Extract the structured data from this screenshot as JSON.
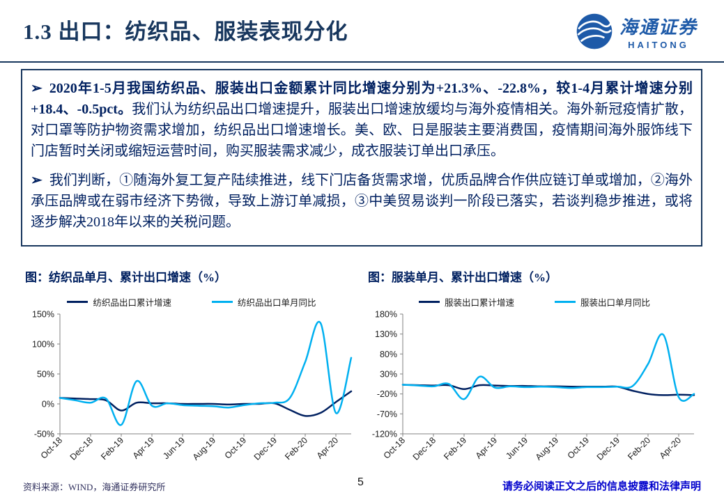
{
  "header": {
    "title": "1.3 出口：纺织品、服装表现分化",
    "logo_cn": "海通证券",
    "logo_en": "HAITONG",
    "accent_color": "#17365d"
  },
  "textbox": {
    "paragraphs": [
      {
        "bullet": "➢",
        "bold": "2020年1-5月我国纺织品、服装出口金额累计同比增速分别为+21.3%、-22.8%，较1-4月累计增速分别+18.4、-0.5pct。",
        "regular": "我们认为纺织品出口增速提升，服装出口增速放缓均与海外疫情相关。海外新冠疫情扩散，对口罩等防护物资需求增加，纺织品出口增速增长。美、欧、日是服装主要消费国，疫情期间海外服饰线下门店暂时关闭或缩短运营时间，购买服装需求减少，成衣服装订单出口承压。"
      },
      {
        "bullet": "➢",
        "bold": "",
        "regular": "我们判断，①随海外复工复产陆续推进，线下门店备货需求增，优质品牌合作供应链订单或增加，②海外承压品牌或在弱市经济下势微，导致上游订单减损，③中美贸易谈判一阶段已落实，若谈判稳步推进，或将逐步解决2018年以来的关税问题。"
      }
    ]
  },
  "chart_data": [
    {
      "type": "line",
      "title": "图：纺织品单月、累计出口增速（%）",
      "x": [
        "Oct-18",
        "Nov-18",
        "Dec-18",
        "Jan-19",
        "Feb-19",
        "Mar-19",
        "Apr-19",
        "May-19",
        "Jun-19",
        "Jul-19",
        "Aug-19",
        "Sep-19",
        "Oct-19",
        "Nov-19",
        "Dec-19",
        "Jan-20",
        "Feb-20",
        "Mar-20",
        "Apr-20",
        "May-20"
      ],
      "x_tick_labels": [
        "Oct-18",
        "Dec-18",
        "Feb-19",
        "Apr-19",
        "Jun-19",
        "Aug-19",
        "Oct-19",
        "Dec-19",
        "Feb-20",
        "Apr-20"
      ],
      "series": [
        {
          "name": "纺织品出口累计增速",
          "color": "#002060",
          "values": [
            10,
            9,
            8,
            6,
            -11,
            2,
            1,
            1,
            0,
            0,
            0,
            -1,
            0,
            0,
            1,
            -10,
            -20,
            -15,
            3,
            21
          ]
        },
        {
          "name": "纺织品出口单月同比",
          "color": "#00b0f0",
          "values": [
            10,
            6,
            2,
            9,
            -35,
            38,
            -3,
            1,
            -2,
            -3,
            -4,
            -6,
            -2,
            1,
            2,
            10,
            70,
            135,
            -15,
            77
          ]
        }
      ],
      "ylim": [
        -50,
        150
      ],
      "yticks": [
        150,
        100,
        50,
        0,
        -50
      ],
      "grid": false,
      "legend_position": "top"
    },
    {
      "type": "line",
      "title": "图：服装单月、累计出口增速（%）",
      "x": [
        "Oct-18",
        "Nov-18",
        "Dec-18",
        "Jan-19",
        "Feb-19",
        "Mar-19",
        "Apr-19",
        "May-19",
        "Jun-19",
        "Jul-19",
        "Aug-19",
        "Sep-19",
        "Oct-19",
        "Nov-19",
        "Dec-19",
        "Jan-20",
        "Feb-20",
        "Mar-20",
        "Apr-20",
        "May-20"
      ],
      "x_tick_labels": [
        "Oct-18",
        "Dec-18",
        "Feb-19",
        "Apr-19",
        "Jun-19",
        "Aug-19",
        "Oct-19",
        "Dec-19",
        "Feb-20",
        "Apr-20"
      ],
      "series": [
        {
          "name": "服装出口累计增速",
          "color": "#002060",
          "values": [
            3,
            2,
            1,
            2,
            -8,
            2,
            1,
            0,
            0,
            -1,
            -1,
            -2,
            -2,
            -2,
            -2,
            -12,
            -20,
            -23,
            -22,
            -23
          ]
        },
        {
          "name": "服装出口单月同比",
          "color": "#00b0f0",
          "values": [
            3,
            1,
            -1,
            5,
            -33,
            23,
            -4,
            -1,
            -3,
            -2,
            -3,
            -5,
            -3,
            -3,
            -2,
            0,
            55,
            128,
            -28,
            -20
          ]
        }
      ],
      "ylim": [
        -120,
        180
      ],
      "yticks": [
        180,
        130,
        80,
        30,
        -20,
        -70,
        -120
      ],
      "grid": false,
      "legend_position": "top"
    }
  ],
  "footer": {
    "source": "资料来源：WIND，海通证券研究所",
    "page": "5",
    "disclaimer": "请务必阅读正文之后的信息披露和法律声明"
  }
}
